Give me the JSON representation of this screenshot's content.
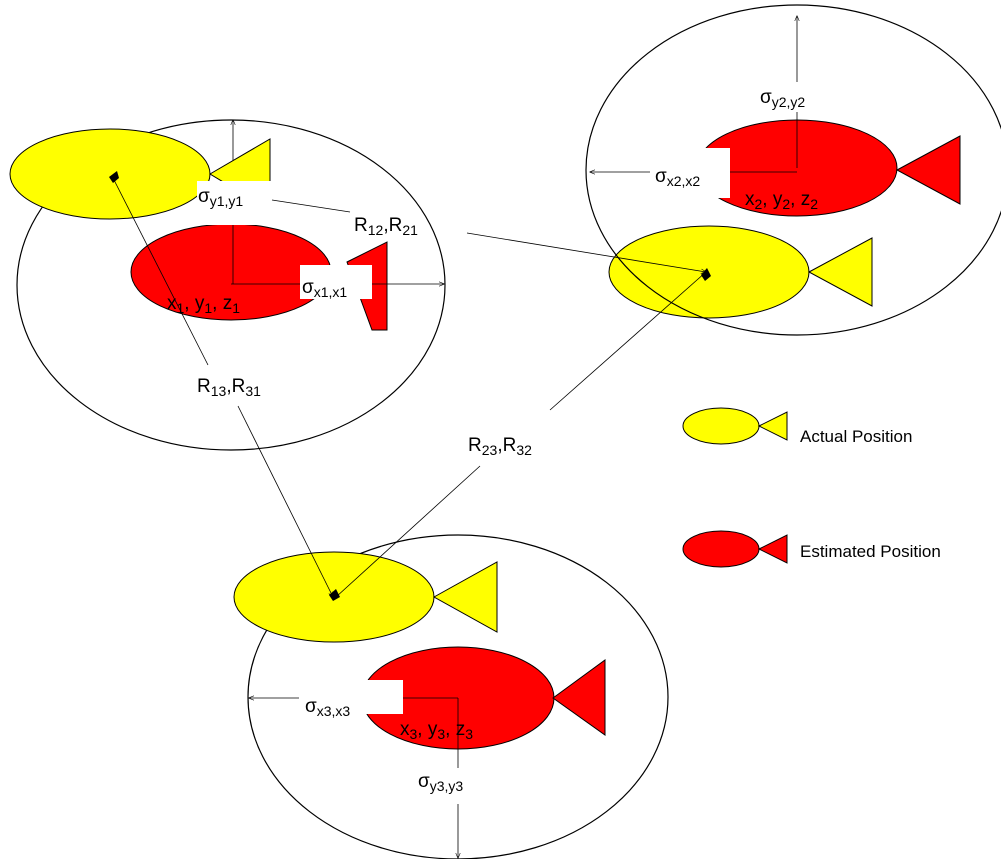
{
  "colors": {
    "actual": "#ffff00",
    "estimated": "#ff0000",
    "outline": "#000000",
    "background": "#ffffff"
  },
  "nodes": [
    {
      "id": "1",
      "sigma_x": {
        "base": "σ",
        "sub": "x1,x1"
      },
      "sigma_y": {
        "base": "σ",
        "sub": "y1,y1"
      },
      "estimate": {
        "x": "x",
        "x_sub": "1",
        "y": "y",
        "y_sub": "1",
        "z": "z",
        "z_sub": "1"
      }
    },
    {
      "id": "2",
      "sigma_x": {
        "base": "σ",
        "sub": "x2,x2"
      },
      "sigma_y": {
        "base": "σ",
        "sub": "y2,y2"
      },
      "estimate": {
        "x": "x",
        "x_sub": "2",
        "y": "y",
        "y_sub": "2",
        "z": "z",
        "z_sub": "2"
      }
    },
    {
      "id": "3",
      "sigma_x": {
        "base": "σ",
        "sub": "x3,x3"
      },
      "sigma_y": {
        "base": "σ",
        "sub": "y3,y3"
      },
      "estimate": {
        "x": "x",
        "x_sub": "3",
        "y": "y",
        "y_sub": "3",
        "z": "z",
        "z_sub": "3"
      }
    }
  ],
  "ranges": [
    {
      "id": "12",
      "a": "R",
      "a_sub": "12",
      "b": "R",
      "b_sub": "21"
    },
    {
      "id": "13",
      "a": "R",
      "a_sub": "13",
      "b": "R",
      "b_sub": "31"
    },
    {
      "id": "23",
      "a": "R",
      "a_sub": "23",
      "b": "R",
      "b_sub": "32"
    }
  ],
  "legend": [
    {
      "label": "Actual Position",
      "type": "actual"
    },
    {
      "label": "Estimated Position",
      "type": "estimated"
    }
  ]
}
